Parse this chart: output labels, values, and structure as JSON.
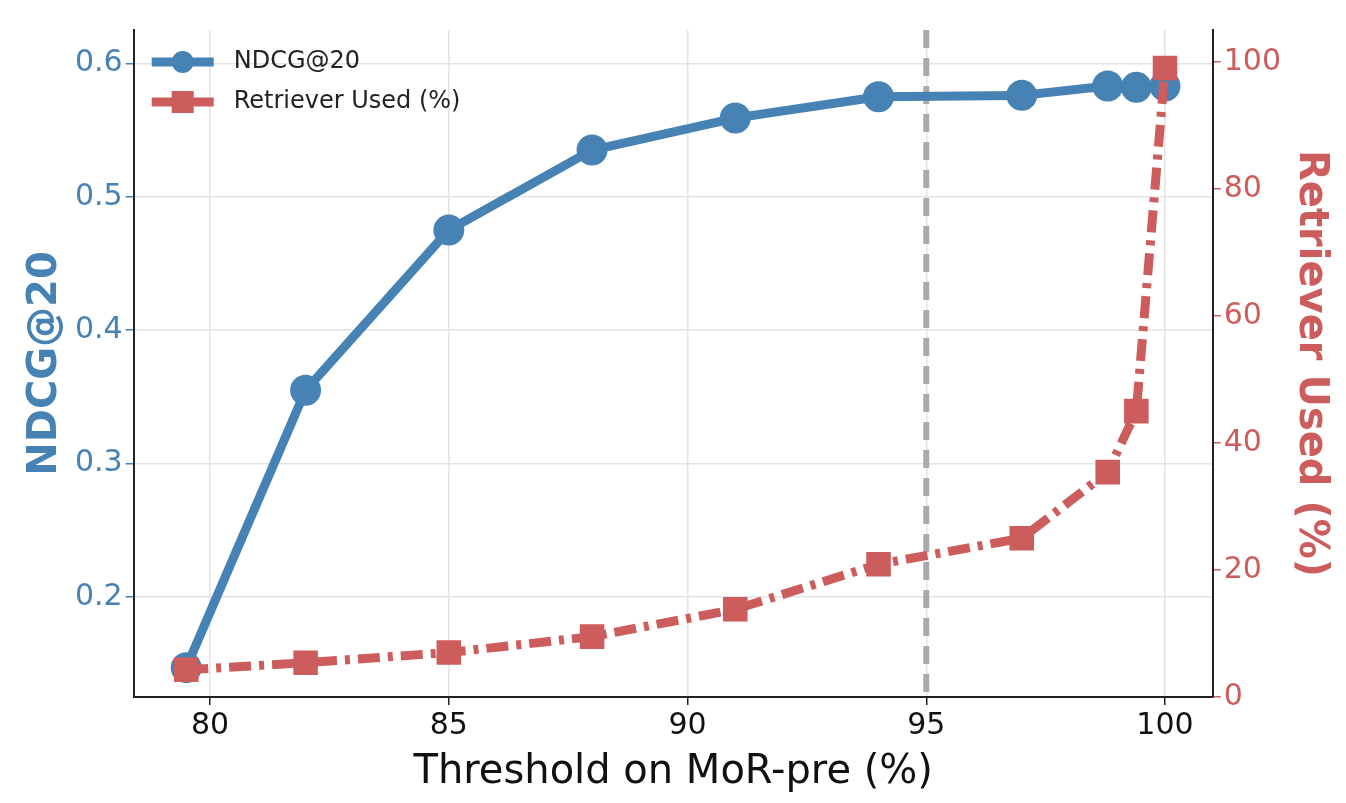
{
  "chart_data": {
    "type": "line",
    "xlabel": "Threshold on MoR-pre (%)",
    "ylabel": "NDCG@20",
    "y2label": "Retriever Used (%)",
    "x": [
      79.5,
      82,
      85,
      88,
      91,
      94,
      97,
      98.8,
      99.4,
      100
    ],
    "series": [
      {
        "name": "NDCG@20",
        "color": "#4682b4",
        "marker": "circle",
        "line_style": "solid",
        "values": [
          0.147,
          0.355,
          0.475,
          0.535,
          0.559,
          0.575,
          0.576,
          0.583,
          0.582,
          0.583
        ]
      },
      {
        "name": "Retriever Used (%)",
        "color": "#cd5c5c",
        "marker": "square",
        "line_style": "dashed",
        "axis": "y2",
        "values": [
          4.3,
          5.4,
          7,
          9.5,
          13.8,
          20.9,
          25,
          35.4,
          45,
          99
        ]
      }
    ],
    "xlim": [
      78.4,
      101
    ],
    "xticks": [
      80,
      85,
      90,
      95,
      100
    ],
    "ylim": [
      0.125,
      0.625
    ],
    "yticks": [
      0.2,
      0.3,
      0.4,
      0.5,
      0.6
    ],
    "y2lim": [
      0,
      105
    ],
    "y2ticks": [
      0,
      20,
      40,
      60,
      80,
      100
    ],
    "ref_lines": [
      {
        "axis": "x",
        "value": 95,
        "color": "#aaaaaa",
        "line_style": "dashed"
      }
    ],
    "grid": true,
    "legend": "top left"
  }
}
